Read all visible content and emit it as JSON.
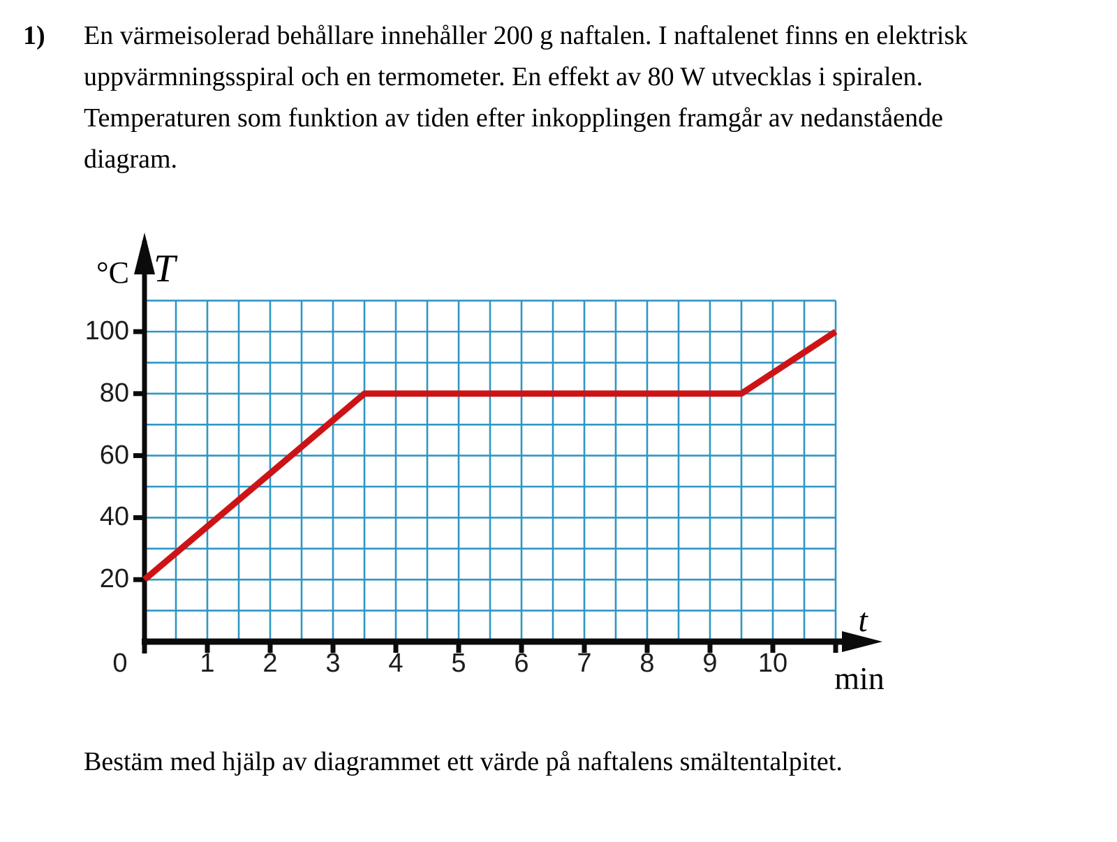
{
  "problem": {
    "number": "1)",
    "lines": [
      "En värmeisolerad behållare innehåller 200 g naftalen. I naftalenet finns en elektrisk",
      "uppvärmningsspiral och en termometer. En effekt av 80 W  utvecklas i spiralen.",
      "Temperaturen som funktion av tiden efter inkopplingen framgår av nedanstående",
      "diagram."
    ]
  },
  "question": "Bestäm med hjälp av diagrammet ett värde på naftalens smältentalpitet.",
  "chart_data": {
    "type": "line",
    "x_axis": {
      "variable": "t",
      "unit": "min",
      "labeled_ticks": [
        0,
        1,
        2,
        3,
        4,
        5,
        6,
        7,
        8,
        9,
        10
      ],
      "tick_marks": [
        0,
        1,
        2,
        3,
        4,
        5,
        6,
        7,
        8,
        9,
        10,
        11
      ],
      "range": [
        0,
        11
      ],
      "grid_step": 0.5
    },
    "y_axis": {
      "variable": "T",
      "unit": "°C",
      "labeled_ticks": [
        20,
        40,
        60,
        80,
        100
      ],
      "tick_marks": [
        20,
        40,
        60,
        80,
        100
      ],
      "range": [
        0,
        110
      ],
      "grid_step": 10
    },
    "grid": {
      "show": true,
      "color": "#2e96c4"
    },
    "axis_color": "#0b0b0b",
    "series": [
      {
        "name": "temperature-curve",
        "color": "#cc1417",
        "points": [
          [
            0,
            20
          ],
          [
            3.5,
            80
          ],
          [
            9.5,
            80
          ],
          [
            11,
            100
          ]
        ]
      }
    ]
  }
}
